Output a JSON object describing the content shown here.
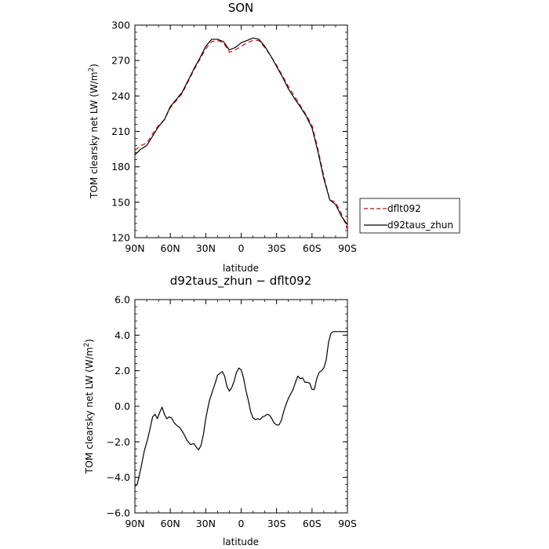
{
  "chart_data": [
    {
      "type": "line",
      "title": "SON",
      "xlabel": "latitude",
      "ylabel": "TOM clearsky net LW (W/m²)",
      "ylabel_main": "TOM clearsky net LW (W/m",
      "ylabel_sup": "2",
      "ylabel_end": ")",
      "xlim": [
        90,
        -90
      ],
      "ylim": [
        120,
        300
      ],
      "xticks": [
        90,
        60,
        30,
        0,
        -30,
        -60,
        -90
      ],
      "xtick_labels": [
        "90N",
        "60N",
        "30N",
        "0",
        "30S",
        "60S",
        "90S"
      ],
      "yticks": [
        120,
        150,
        180,
        210,
        240,
        270,
        300
      ],
      "ytick_labels": [
        "120",
        "150",
        "180",
        "210",
        "240",
        "270",
        "300"
      ],
      "legend_position": "right",
      "legend": [
        "dflt092",
        "d92taus_zhun"
      ],
      "series": [
        {
          "name": "dflt092",
          "color": "#e00000",
          "dash": "6,4",
          "x": [
            90,
            85,
            80,
            75,
            70,
            65,
            60,
            55,
            50,
            45,
            40,
            35,
            30,
            25,
            20,
            15,
            10,
            5,
            0,
            -5,
            -10,
            -15,
            -20,
            -25,
            -30,
            -35,
            -40,
            -45,
            -50,
            -55,
            -60,
            -65,
            -70,
            -75,
            -80,
            -85,
            -90
          ],
          "y": [
            194,
            198,
            200,
            208,
            215,
            220,
            230,
            236,
            242,
            252,
            262,
            271,
            280,
            286,
            287,
            285,
            277,
            279,
            282,
            285,
            287,
            287,
            281,
            274,
            266,
            257,
            248,
            240,
            232,
            224,
            215,
            195,
            172,
            152,
            150,
            140,
            127
          ]
        },
        {
          "name": "d92taus_zhun",
          "color": "#000000",
          "dash": "",
          "x": [
            90,
            85,
            80,
            75,
            70,
            65,
            60,
            55,
            50,
            45,
            40,
            35,
            30,
            25,
            20,
            15,
            10,
            5,
            0,
            -5,
            -10,
            -15,
            -20,
            -25,
            -30,
            -35,
            -40,
            -45,
            -50,
            -55,
            -60,
            -65,
            -70,
            -75,
            -80,
            -85,
            -90
          ],
          "y": [
            190,
            195,
            198,
            206,
            214,
            220,
            231,
            237,
            243,
            253,
            263,
            272,
            282,
            288,
            288,
            286,
            279,
            281,
            285,
            287,
            289,
            288,
            282,
            274,
            265,
            256,
            246,
            238,
            231,
            223,
            213,
            193,
            170,
            152,
            148,
            138,
            131
          ]
        }
      ]
    },
    {
      "type": "line",
      "title": "d92taus_zhun − dflt092",
      "xlabel": "latitude",
      "ylabel": "TOM clearsky net LW (W/m²)",
      "ylabel_main": "TOM clearsky net LW (W/m",
      "ylabel_sup": "2",
      "ylabel_end": ")",
      "xlim": [
        90,
        -90
      ],
      "ylim": [
        -6.0,
        6.0
      ],
      "xticks": [
        90,
        60,
        30,
        0,
        -30,
        -60,
        -90
      ],
      "xtick_labels": [
        "90N",
        "60N",
        "30N",
        "0",
        "30S",
        "60S",
        "90S"
      ],
      "yticks": [
        -6.0,
        -4.0,
        -2.0,
        0.0,
        2.0,
        4.0,
        6.0
      ],
      "ytick_labels": [
        "−6.0",
        "−4.0",
        "−2.0",
        "0.0",
        "2.0",
        "4.0",
        "6.0"
      ],
      "series": [
        {
          "color": "#000000",
          "x": [
            90,
            88,
            85,
            82,
            79,
            77,
            75,
            73,
            71,
            69,
            67,
            65,
            63,
            61,
            59,
            57,
            55,
            52,
            49,
            46,
            43,
            40,
            38,
            36,
            34,
            32,
            30,
            27,
            24,
            22,
            20,
            18,
            16,
            14,
            12,
            10,
            8,
            6,
            4,
            2,
            0,
            -2,
            -4,
            -6,
            -8,
            -10,
            -12,
            -14,
            -16,
            -18,
            -20,
            -22,
            -24,
            -26,
            -28,
            -30,
            -32,
            -34,
            -36,
            -38,
            -40,
            -42,
            -44,
            -46,
            -48,
            -50,
            -52,
            -54,
            -56,
            -58,
            -60,
            -62,
            -64,
            -66,
            -68,
            -70,
            -72,
            -74,
            -76,
            -78,
            -80,
            -82,
            -84,
            -86,
            -88,
            -90
          ],
          "y": [
            -4.5,
            -4.4,
            -3.5,
            -2.5,
            -1.8,
            -1.2,
            -0.6,
            -0.45,
            -0.7,
            -0.35,
            -0.05,
            -0.45,
            -0.7,
            -0.6,
            -0.65,
            -0.9,
            -1.05,
            -1.2,
            -1.5,
            -1.9,
            -2.15,
            -2.1,
            -2.3,
            -2.45,
            -2.2,
            -1.6,
            -0.7,
            0.3,
            0.9,
            1.3,
            1.75,
            1.85,
            1.95,
            1.7,
            1.1,
            0.85,
            1.05,
            1.4,
            1.9,
            2.15,
            2.05,
            1.6,
            0.9,
            0.35,
            -0.3,
            -0.65,
            -0.75,
            -0.7,
            -0.75,
            -0.6,
            -0.55,
            -0.45,
            -0.5,
            -0.7,
            -0.95,
            -1.05,
            -1.05,
            -0.8,
            -0.3,
            0.1,
            0.45,
            0.7,
            0.95,
            1.35,
            1.7,
            1.55,
            1.6,
            1.35,
            1.35,
            1.3,
            0.95,
            0.95,
            1.55,
            1.9,
            2.0,
            2.15,
            2.6,
            3.6,
            4.1,
            4.2,
            4.2,
            4.2,
            4.2,
            4.2,
            4.2,
            4.2
          ]
        }
      ]
    }
  ]
}
